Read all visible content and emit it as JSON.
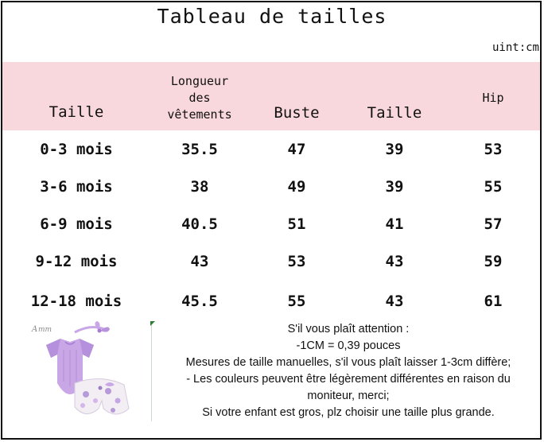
{
  "title": "Tableau de tailles",
  "unit": "uint:cm",
  "headers": {
    "taille": "Taille",
    "longueur": [
      "Longueur",
      "des",
      "vêtements"
    ],
    "buste": "Buste",
    "taille2": "Taille",
    "hip": "Hip"
  },
  "rows": [
    [
      "0-3 mois",
      "35.5",
      "47",
      "39",
      "53"
    ],
    [
      "3-6 mois",
      "38",
      "49",
      "39",
      "55"
    ],
    [
      "6-9 mois",
      "40.5",
      "51",
      "41",
      "57"
    ],
    [
      "9-12 mois",
      "43",
      "53",
      "43",
      "59"
    ],
    [
      "12-18 mois",
      "45.5",
      "55",
      "43",
      "61"
    ]
  ],
  "notes": [
    "S'il vous plaît attention :",
    "-1CM = 0,39 pouces",
    "Mesures de taille manuelles, s'il vous plaît laisser 1-3cm diffère;",
    "- Les couleurs peuvent être légèrement différentes en raison du",
    "moniteur, merci;",
    "Si votre enfant est gros, plz choisir une taille plus grande."
  ],
  "image_logo": "Amm",
  "colors": {
    "header_band": "#f8d8dc",
    "outfit_purple": "#c9a6e6"
  }
}
